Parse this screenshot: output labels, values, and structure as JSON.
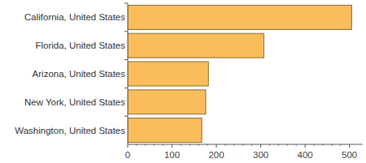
{
  "chart_data": {
    "type": "bar",
    "orientation": "horizontal",
    "categories": [
      "California, United States",
      "Florida, United States",
      "Arizona, United States",
      "New York, United States",
      "Washington, United States"
    ],
    "values": [
      505,
      307,
      182,
      176,
      167
    ],
    "color": "#fbbd5b",
    "xlim": [
      0,
      530
    ],
    "xticks": [
      0,
      100,
      200,
      300,
      400,
      500
    ],
    "grid": false
  }
}
